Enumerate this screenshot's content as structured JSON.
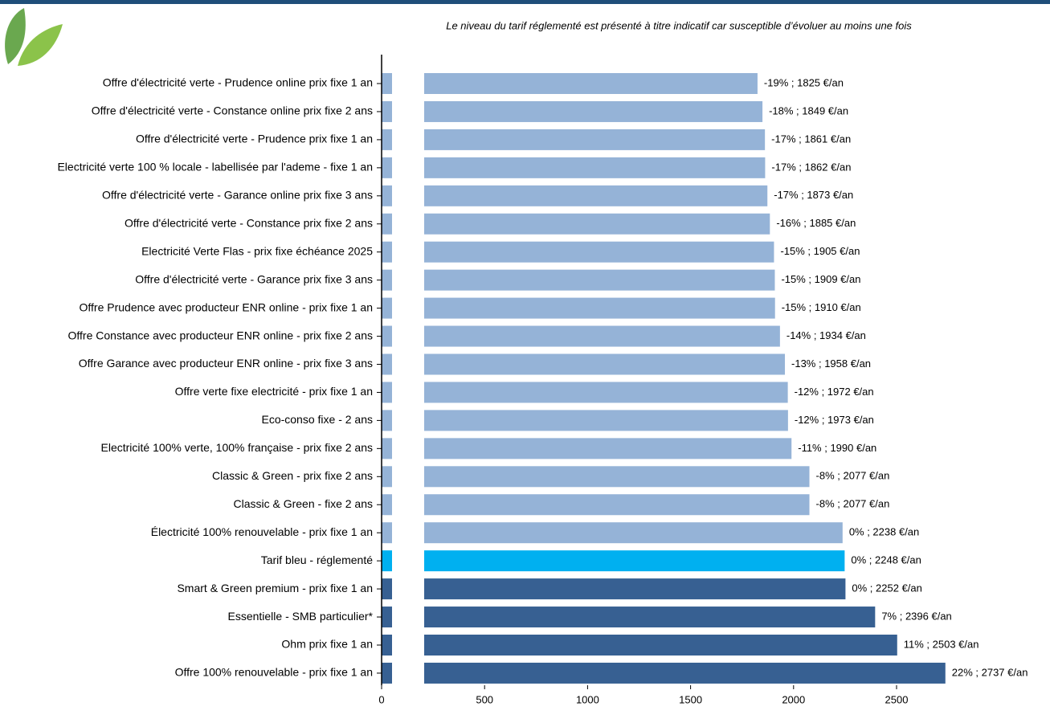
{
  "chart_data": {
    "type": "bar",
    "orientation": "horizontal",
    "annotation": "Le niveau du tarif réglementé est présenté à titre indicatif car susceptible d’évoluer au moins une fois",
    "categories": [
      "Offre d'électricité verte - Prudence online prix fixe 1 an",
      "Offre d'électricité verte - Constance online prix fixe 2 ans",
      "Offre d'électricité verte - Prudence prix fixe 1 an",
      "Electricité verte 100 % locale - labellisée par l'ademe - fixe 1 an",
      "Offre d'électricité verte - Garance online prix fixe 3 ans",
      "Offre d'électricité verte - Constance prix fixe 2 ans",
      "Electricité Verte Flas - prix fixe échéance 2025",
      "Offre d'électricité verte - Garance prix fixe 3 ans",
      "Offre Prudence avec producteur ENR online - prix fixe 1 an",
      "Offre Constance avec producteur ENR online - prix fixe 2 ans",
      "Offre Garance avec producteur ENR online - prix fixe 3 ans",
      "Offre verte fixe electricité - prix fixe 1 an",
      "Eco-conso fixe - 2 ans",
      "Electricité 100% verte, 100% française - prix fixe 2 ans",
      "Classic & Green - prix fixe 2 ans",
      "Classic & Green - fixe 2 ans",
      "Électricité 100% renouvelable - prix fixe 1 an",
      "Tarif bleu - réglementé",
      "Smart & Green premium - prix fixe 1 an",
      "Essentielle - SMB particulier*",
      "Ohm prix fixe 1 an",
      "Offre 100% renouvelable - prix fixe 1 an"
    ],
    "values": [
      1825,
      1849,
      1861,
      1862,
      1873,
      1885,
      1905,
      1909,
      1910,
      1934,
      1958,
      1972,
      1973,
      1990,
      2077,
      2077,
      2238,
      2248,
      2252,
      2396,
      2503,
      2737
    ],
    "value_labels": [
      "-19% ; 1825 €/an",
      "-18% ; 1849 €/an",
      "-17% ; 1861 €/an",
      "-17% ; 1862 €/an",
      "-17% ; 1873 €/an",
      "-16% ; 1885 €/an",
      "-15% ; 1905 €/an",
      "-15% ; 1909 €/an",
      "-15% ; 1910 €/an",
      "-14% ; 1934 €/an",
      "-13% ; 1958 €/an",
      "-12% ; 1972 €/an",
      "-12% ; 1973 €/an",
      "-11% ; 1990 €/an",
      "-8% ; 2077 €/an",
      "-8% ; 2077 €/an",
      "0% ; 2238 €/an",
      "0% ; 2248 €/an",
      "0% ; 2252 €/an",
      "7% ; 2396 €/an",
      "11% ; 2503 €/an",
      "22% ; 2737 €/an"
    ],
    "colors": [
      "#95b3d7",
      "#95b3d7",
      "#95b3d7",
      "#95b3d7",
      "#95b3d7",
      "#95b3d7",
      "#95b3d7",
      "#95b3d7",
      "#95b3d7",
      "#95b3d7",
      "#95b3d7",
      "#95b3d7",
      "#95b3d7",
      "#95b3d7",
      "#95b3d7",
      "#95b3d7",
      "#95b3d7",
      "#00b0f0",
      "#376092",
      "#376092",
      "#376092",
      "#376092"
    ],
    "xlim": [
      0,
      2750
    ],
    "xticks": [
      0,
      500,
      1000,
      1500,
      2000,
      2500
    ]
  }
}
